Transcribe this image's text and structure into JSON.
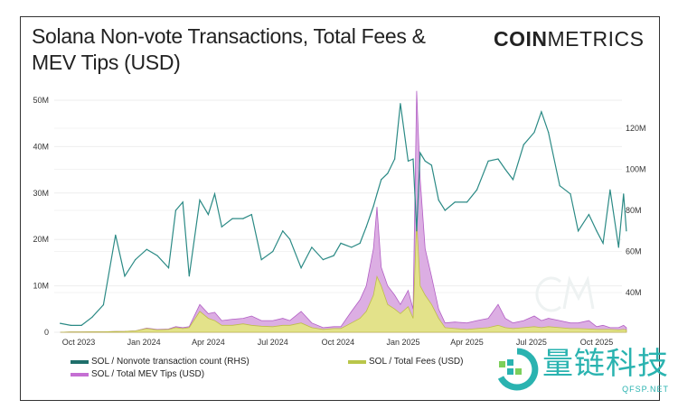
{
  "header": {
    "title": "Solana Non-vote Transactions, Total Fees & MEV Tips (USD)",
    "brand_bold": "COIN",
    "brand_light": "METRICS"
  },
  "watermark": {
    "text": "量链科技",
    "url": "QFSP.NET"
  },
  "chart_data": {
    "type": "line+area",
    "title": "Solana Non-vote Transactions, Total Fees & MEV Tips (USD)",
    "x_ticks": [
      "Oct 2023",
      "Jan 2024",
      "Apr 2024",
      "Jul 2024",
      "Oct 2024",
      "Jan 2025",
      "Apr 2025",
      "Jul 2025",
      "Oct 2025"
    ],
    "x_tick_dates": [
      "2023-10-01",
      "2024-01-01",
      "2024-04-01",
      "2024-07-01",
      "2024-10-01",
      "2025-01-01",
      "2025-04-01",
      "2025-07-01",
      "2025-10-01"
    ],
    "y_left": {
      "ticks": [
        "0",
        "10M",
        "20M",
        "30M",
        "40M",
        "50M"
      ],
      "tick_values": [
        0,
        10,
        20,
        30,
        40,
        50
      ],
      "range": [
        0,
        52
      ],
      "unit": "M USD"
    },
    "y_right": {
      "ticks": [
        "40M",
        "60M",
        "80M",
        "100M",
        "120M"
      ],
      "tick_values": [
        40,
        60,
        80,
        100,
        120
      ],
      "range": [
        20.6,
        133
      ],
      "unit": "M"
    },
    "grid": true,
    "legend_position": "bottom",
    "colors": {
      "tx": "#2b8a85",
      "fees_fill": "#e3e28a",
      "fees_line": "#bdbd4a",
      "mev_fill": "#dcaee3",
      "mev_line": "#b25fc4"
    },
    "series": [
      {
        "name": "SOL / Nonvote transaction count (RHS)",
        "axis": "right",
        "type": "line"
      },
      {
        "name": "SOL / Total Fees (USD)",
        "axis": "left",
        "type": "area"
      },
      {
        "name": "SOL / Total MEV Tips (USD)",
        "axis": "left",
        "type": "area"
      }
    ],
    "x": [
      "2023-09-05",
      "2023-09-20",
      "2023-10-05",
      "2023-10-20",
      "2023-11-05",
      "2023-11-22",
      "2023-12-05",
      "2023-12-20",
      "2024-01-05",
      "2024-01-20",
      "2024-02-05",
      "2024-02-15",
      "2024-02-25",
      "2024-03-05",
      "2024-03-20",
      "2024-04-01",
      "2024-04-10",
      "2024-04-20",
      "2024-05-05",
      "2024-05-20",
      "2024-06-01",
      "2024-06-15",
      "2024-07-01",
      "2024-07-15",
      "2024-07-25",
      "2024-08-10",
      "2024-08-25",
      "2024-09-10",
      "2024-09-25",
      "2024-10-05",
      "2024-10-20",
      "2024-11-01",
      "2024-11-10",
      "2024-11-20",
      "2024-11-25",
      "2024-12-01",
      "2024-12-10",
      "2024-12-20",
      "2024-12-28",
      "2025-01-08",
      "2025-01-15",
      "2025-01-20",
      "2025-01-25",
      "2025-02-01",
      "2025-02-10",
      "2025-02-20",
      "2025-03-01",
      "2025-03-15",
      "2025-04-01",
      "2025-04-15",
      "2025-05-01",
      "2025-05-15",
      "2025-05-25",
      "2025-06-05",
      "2025-06-20",
      "2025-07-05",
      "2025-07-15",
      "2025-07-25",
      "2025-08-10",
      "2025-08-25",
      "2025-09-05",
      "2025-09-20",
      "2025-10-01",
      "2025-10-10",
      "2025-10-20",
      "2025-11-01",
      "2025-11-08",
      "2025-11-12"
    ],
    "tx": [
      25,
      24,
      24,
      28,
      34,
      68,
      48,
      56,
      61,
      58,
      52,
      80,
      84,
      48,
      85,
      78,
      88,
      72,
      76,
      76,
      78,
      56,
      60,
      70,
      66,
      52,
      62,
      56,
      58,
      64,
      62,
      64,
      72,
      82,
      88,
      95,
      98,
      105,
      132,
      104,
      105,
      70,
      108,
      104,
      102,
      85,
      80,
      84,
      84,
      90,
      104,
      105,
      100,
      95,
      112,
      118,
      128,
      118,
      92,
      88,
      70,
      78,
      70,
      64,
      90,
      62,
      88,
      70
    ],
    "fees": [
      0,
      0.05,
      0.05,
      0.1,
      0.1,
      0.15,
      0.2,
      0.3,
      0.8,
      0.5,
      0.6,
      1.0,
      0.8,
      1.0,
      4.5,
      3.0,
      2.5,
      1.5,
      1.5,
      1.8,
      1.5,
      1.3,
      1.2,
      1.5,
      1.5,
      2.0,
      1.0,
      0.6,
      0.8,
      0.8,
      2.0,
      3.0,
      4.5,
      8.0,
      12.0,
      10,
      6,
      5,
      4,
      5.5,
      3,
      24,
      10,
      8,
      6,
      3,
      1.0,
      0.8,
      0.6,
      0.8,
      1.0,
      1.5,
      1.0,
      0.8,
      1.0,
      1.2,
      1.0,
      1.2,
      1.0,
      0.8,
      0.8,
      0.7,
      0.6,
      0.6,
      0.6,
      0.5,
      0.6,
      0.5
    ],
    "mev": [
      0,
      0.05,
      0.05,
      0.1,
      0.1,
      0.15,
      0.2,
      0.3,
      0.9,
      0.6,
      0.7,
      1.2,
      1.0,
      1.2,
      6.0,
      4.0,
      4.3,
      2.5,
      2.8,
      3.0,
      3.5,
      2.5,
      2.5,
      3.0,
      2.5,
      4.5,
      2.0,
      1.0,
      1.2,
      1.2,
      4.5,
      7.0,
      10.0,
      18.0,
      27.0,
      14,
      10,
      8,
      6,
      9,
      5,
      52,
      33,
      18,
      12,
      5,
      2.0,
      2.2,
      2.0,
      2.5,
      3.0,
      6.0,
      3.0,
      2.0,
      2.5,
      3.5,
      2.5,
      3.0,
      2.5,
      2.0,
      2.0,
      2.5,
      1.2,
      1.5,
      1.0,
      1.0,
      1.5,
      1.0
    ]
  }
}
